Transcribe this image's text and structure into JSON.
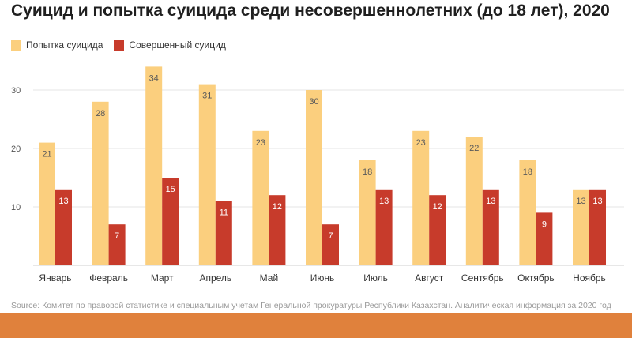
{
  "chart_data": {
    "type": "bar",
    "title": "Суицид и попытка суицида среди несовершеннолетних (до 18 лет), 2020",
    "categories": [
      "Январь",
      "Февраль",
      "Март",
      "Апрель",
      "Май",
      "Июнь",
      "Июль",
      "Август",
      "Сентябрь",
      "Октябрь",
      "Ноябрь"
    ],
    "series": [
      {
        "name": "Попытка суицида",
        "color": "#fbcf7e",
        "values": [
          21,
          28,
          34,
          31,
          23,
          30,
          18,
          23,
          22,
          18,
          13
        ]
      },
      {
        "name": "Совершенный суицид",
        "color": "#c73b2b",
        "values": [
          13,
          7,
          15,
          11,
          12,
          7,
          13,
          12,
          13,
          9,
          13
        ]
      }
    ],
    "yticks": [
      10,
      20,
      30
    ],
    "ylim": [
      0,
      36
    ],
    "grid": true,
    "legend_position": "top-left",
    "source": "Source: Комитет по правовой статистике и специальным учетам Генеральной прокуратуры Республики Казахстан. Аналитическая информация за 2020 год"
  },
  "colors": {
    "bottom_bar": "#e0813c",
    "grid": "#e4e4e4",
    "attempt_label": "#5a5a5a",
    "completed_label": "#ffffff"
  }
}
